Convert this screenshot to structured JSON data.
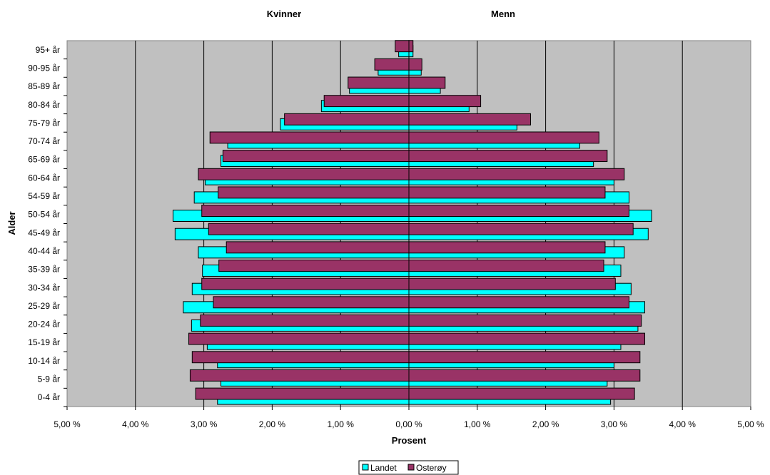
{
  "chart_data": {
    "type": "bar",
    "orientation": "horizontal",
    "panel_titles": {
      "left": "Kvinner",
      "right": "Menn"
    },
    "xlabel": "Prosent",
    "ylabel": "Alder",
    "xlim": [
      -5,
      5
    ],
    "x_ticks": [
      {
        "value": -5,
        "label": "5,00 %"
      },
      {
        "value": -4,
        "label": "4,00 %"
      },
      {
        "value": -3,
        "label": "3,00 %"
      },
      {
        "value": -2,
        "label": "2,00 %"
      },
      {
        "value": -1,
        "label": "1,00 %"
      },
      {
        "value": 0,
        "label": "0,00 %"
      },
      {
        "value": 1,
        "label": "1,00 %"
      },
      {
        "value": 2,
        "label": "2,00 %"
      },
      {
        "value": 3,
        "label": "3,00 %"
      },
      {
        "value": 4,
        "label": "4,00 %"
      },
      {
        "value": 5,
        "label": "5,00 %"
      }
    ],
    "grid": true,
    "plot_background": "#c0c0c0",
    "legend_position": "bottom",
    "categories": [
      "0-4 år",
      "5-9 år",
      "10-14 år",
      "15-19 år",
      "20-24 år",
      "25-29 år",
      "30-34 år",
      "35-39 år",
      "40-44 år",
      "45-49 år",
      "50-54 år",
      "54-59 år",
      "60-64 år",
      "65-69 år",
      "70-74 år",
      "75-79 år",
      "80-84 år",
      "85-89 år",
      "90-95 år",
      "95+ år"
    ],
    "series": [
      {
        "name": "Landet",
        "color": "#00ffff",
        "women": [
          2.8,
          2.75,
          2.8,
          2.95,
          3.18,
          3.3,
          3.17,
          3.02,
          3.08,
          3.42,
          3.45,
          3.14,
          2.98,
          2.75,
          2.65,
          1.88,
          1.28,
          0.87,
          0.45,
          0.15
        ],
        "men": [
          2.95,
          2.9,
          3.0,
          3.1,
          3.35,
          3.45,
          3.25,
          3.1,
          3.15,
          3.5,
          3.55,
          3.22,
          3.0,
          2.7,
          2.5,
          1.58,
          0.88,
          0.46,
          0.18,
          0.06
        ]
      },
      {
        "name": "Osterøy",
        "color": "#993366",
        "women": [
          3.12,
          3.2,
          3.17,
          3.22,
          3.05,
          2.86,
          3.03,
          2.78,
          2.67,
          2.93,
          3.03,
          2.79,
          3.08,
          2.72,
          2.91,
          1.82,
          1.24,
          0.89,
          0.5,
          0.2
        ],
        "men": [
          3.3,
          3.38,
          3.38,
          3.45,
          3.4,
          3.22,
          3.02,
          2.85,
          2.87,
          3.28,
          3.22,
          2.87,
          3.15,
          2.9,
          2.78,
          1.78,
          1.05,
          0.53,
          0.19,
          0.06
        ]
      }
    ]
  }
}
